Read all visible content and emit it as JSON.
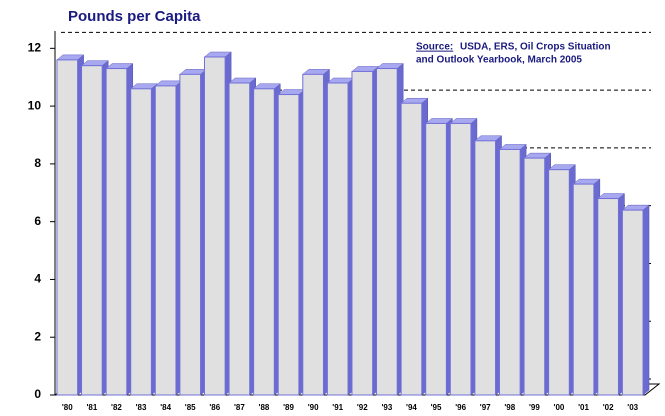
{
  "chart_data": {
    "type": "bar",
    "title": "Pounds per Capita",
    "source_label": "Source:",
    "source_lines": [
      "USDA, ERS, Oil Crops Situation",
      "and Outlook Yearbook, March 2005"
    ],
    "categories": [
      "'80",
      "'81",
      "'82",
      "'83",
      "'84",
      "'85",
      "'86",
      "'87",
      "'88",
      "'89",
      "'90",
      "'91",
      "'92",
      "'93",
      "'94",
      "'95",
      "'96",
      "'97",
      "'98",
      "'99",
      "'00",
      "'01",
      "'02",
      "'03"
    ],
    "values": [
      11.6,
      11.4,
      11.3,
      10.6,
      10.7,
      11.1,
      11.7,
      10.8,
      10.6,
      10.4,
      11.1,
      10.8,
      11.2,
      11.3,
      10.1,
      9.4,
      9.4,
      8.8,
      8.5,
      8.2,
      7.8,
      7.3,
      6.8,
      6.4
    ],
    "color": "#e0e0e0",
    "ylim": [
      0,
      12.6
    ],
    "yticks": [
      0,
      2,
      4,
      6,
      8,
      10,
      12
    ],
    "grid": true
  }
}
